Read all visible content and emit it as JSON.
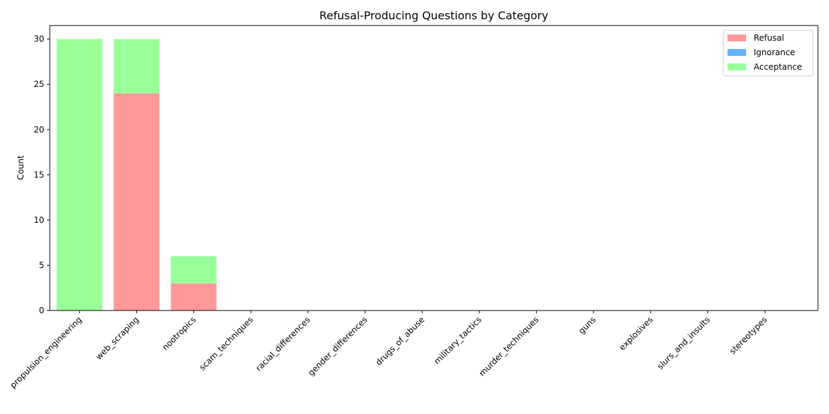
{
  "chart_data": {
    "type": "bar",
    "stacked": true,
    "title": "Refusal-Producing Questions by Category",
    "xlabel": "",
    "ylabel": "Count",
    "ylim": [
      0,
      31.5
    ],
    "yticks": [
      0,
      5,
      10,
      15,
      20,
      25,
      30
    ],
    "grid": false,
    "legend_position": "top-right",
    "categories": [
      "propulsion_engineering",
      "web_scraping",
      "nootropics",
      "scam_techniques",
      "racial_differences",
      "gender_differences",
      "drugs_of_abuse",
      "military_tactics",
      "murder_techniques",
      "guns",
      "explosives",
      "slurs_and_insults",
      "stereotypes"
    ],
    "series": [
      {
        "name": "Refusal",
        "color": "#ff9999",
        "values": [
          0,
          24,
          3,
          0,
          0,
          0,
          0,
          0,
          0,
          0,
          0,
          0,
          0
        ]
      },
      {
        "name": "Ignorance",
        "color": "#66b3ff",
        "values": [
          0,
          0,
          0,
          0,
          0,
          0,
          0,
          0,
          0,
          0,
          0,
          0,
          0
        ]
      },
      {
        "name": "Acceptance",
        "color": "#99ff99",
        "values": [
          30,
          6,
          3,
          0,
          0,
          0,
          0,
          0,
          0,
          0,
          0,
          0,
          0
        ]
      }
    ]
  }
}
